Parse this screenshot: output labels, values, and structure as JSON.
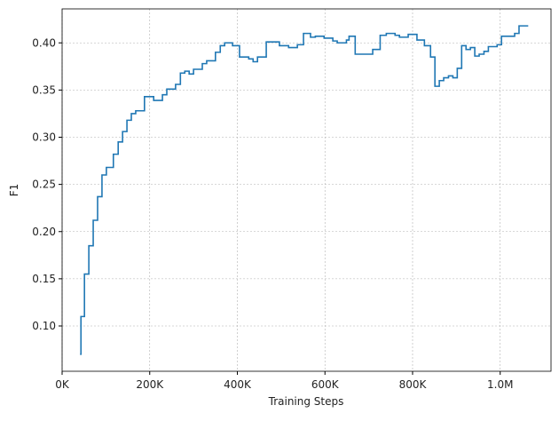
{
  "chart_data": {
    "type": "line",
    "drawstyle": "steps-post",
    "xlabel": "Training Steps",
    "ylabel": "F1",
    "color": "#1f77b4",
    "grid": true,
    "x": [
      41000,
      43000,
      51000,
      61000,
      71000,
      81000,
      91000,
      101000,
      117000,
      128000,
      138000,
      148000,
      158000,
      168000,
      188000,
      209000,
      229000,
      239000,
      259000,
      270000,
      280000,
      290000,
      300000,
      320000,
      330000,
      350000,
      361000,
      371000,
      389000,
      405000,
      426000,
      436000,
      446000,
      466000,
      496000,
      517000,
      537000,
      551000,
      567000,
      578000,
      598000,
      618000,
      628000,
      649000,
      655000,
      669000,
      709000,
      726000,
      740000,
      760000,
      770000,
      790000,
      810000,
      827000,
      841000,
      851000,
      861000,
      871000,
      882000,
      892000,
      902000,
      912000,
      922000,
      932000,
      942000,
      952000,
      963000,
      973000,
      993000,
      1003000,
      1033000,
      1043000,
      1064000
    ],
    "values": [
      0.07,
      0.11,
      0.155,
      0.185,
      0.212,
      0.237,
      0.26,
      0.268,
      0.282,
      0.295,
      0.306,
      0.318,
      0.325,
      0.328,
      0.343,
      0.339,
      0.345,
      0.351,
      0.356,
      0.368,
      0.37,
      0.367,
      0.372,
      0.378,
      0.381,
      0.39,
      0.397,
      0.4,
      0.397,
      0.385,
      0.383,
      0.38,
      0.385,
      0.401,
      0.397,
      0.395,
      0.398,
      0.41,
      0.406,
      0.407,
      0.405,
      0.402,
      0.4,
      0.403,
      0.407,
      0.388,
      0.393,
      0.408,
      0.41,
      0.408,
      0.406,
      0.409,
      0.403,
      0.397,
      0.385,
      0.354,
      0.36,
      0.363,
      0.365,
      0.363,
      0.373,
      0.397,
      0.393,
      0.395,
      0.386,
      0.388,
      0.391,
      0.396,
      0.398,
      0.407,
      0.41,
      0.418,
      0.418
    ],
    "xlim": [
      0,
      1116000
    ],
    "xticks": [
      {
        "value": 0,
        "label": "0K"
      },
      {
        "value": 200000,
        "label": "200K"
      },
      {
        "value": 400000,
        "label": "400K"
      },
      {
        "value": 600000,
        "label": "600K"
      },
      {
        "value": 800000,
        "label": "800K"
      },
      {
        "value": 1000000,
        "label": "1.0M"
      }
    ],
    "ylim": [
      0.052,
      0.436
    ],
    "yticks": [
      {
        "value": 0.1,
        "label": "0.10"
      },
      {
        "value": 0.15,
        "label": "0.15"
      },
      {
        "value": 0.2,
        "label": "0.20"
      },
      {
        "value": 0.25,
        "label": "0.25"
      },
      {
        "value": 0.3,
        "label": "0.30"
      },
      {
        "value": 0.35,
        "label": "0.35"
      },
      {
        "value": 0.4,
        "label": "0.40"
      }
    ]
  }
}
